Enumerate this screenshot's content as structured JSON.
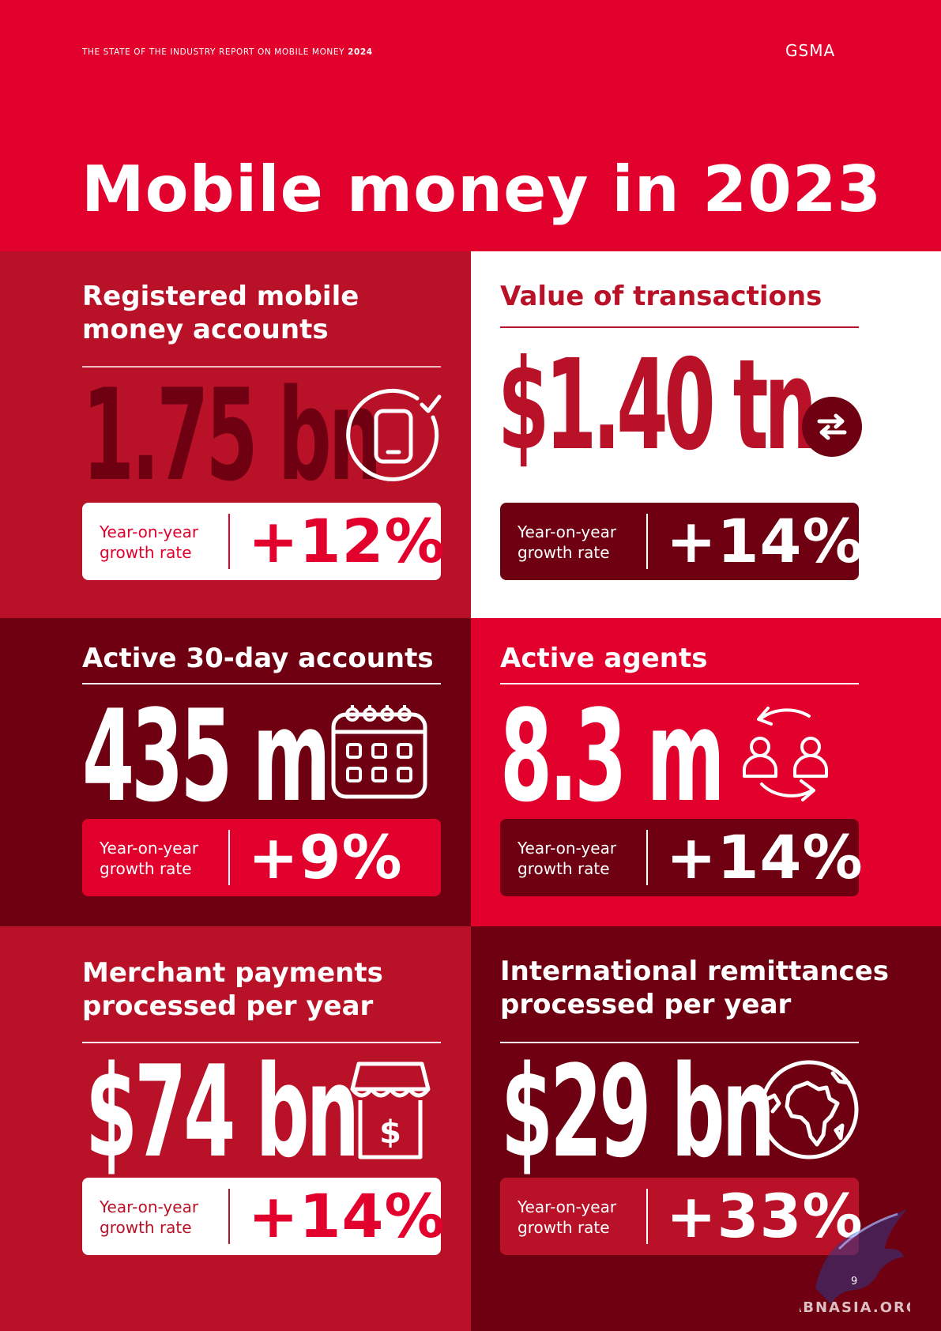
{
  "header": {
    "report_line": "THE STATE OF THE INDUSTRY REPORT ON MOBILE MONEY",
    "report_year": "2024",
    "logo": "GSMA",
    "title": "Mobile money in 2023"
  },
  "panels": [
    {
      "title_line1": "Registered mobile",
      "title_line2": "money accounts",
      "value": "1.75 bn",
      "growth_label_line1": "Year-on-year",
      "growth_label_line2": "growth rate",
      "growth": "+12%",
      "icon": "mobile-check-icon"
    },
    {
      "title_line1": "Value of transactions",
      "value": "$1.40 tn",
      "growth_label_line1": "Year-on-year",
      "growth_label_line2": "growth rate",
      "growth": "+14%",
      "icon": "exchange-arrows-icon"
    },
    {
      "title_line1": "Active 30-day accounts",
      "value": "435 m",
      "growth_label_line1": "Year-on-year",
      "growth_label_line2": "growth rate",
      "growth": "+9%",
      "icon": "calendar-icon"
    },
    {
      "title_line1": "Active agents",
      "value": "8.3 m",
      "growth_label_line1": "Year-on-year",
      "growth_label_line2": "growth rate",
      "growth": "+14%",
      "icon": "agents-cycle-icon"
    },
    {
      "title_line1": "Merchant payments",
      "title_line2": "processed per year",
      "value": "$74 bn",
      "growth_label_line1": "Year-on-year",
      "growth_label_line2": "growth rate",
      "growth": "+14%",
      "icon": "shop-dollar-icon"
    },
    {
      "title_line1": "International remittances",
      "title_line2": "processed per year",
      "value": "$29 bn",
      "growth_label_line1": "Year-on-year",
      "growth_label_line2": "growth rate",
      "growth": "+33%",
      "icon": "globe-africa-icon"
    }
  ],
  "footer": {
    "page_number": "9",
    "watermark": "ABNASIA.ORG"
  },
  "colors": {
    "red": "#e2002d",
    "crimson": "#b91228",
    "maroon": "#6f0011",
    "white": "#ffffff"
  }
}
